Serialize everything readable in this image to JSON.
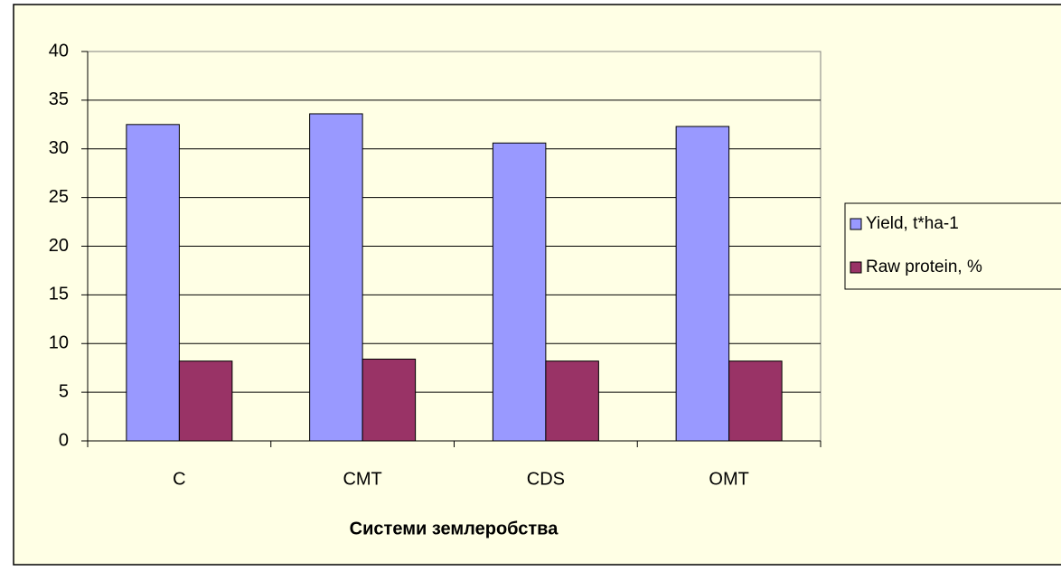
{
  "chart_data": {
    "type": "bar",
    "categories": [
      "C",
      "CMT",
      "CDS",
      "OMT"
    ],
    "series": [
      {
        "name": "Yield, t*ha-1",
        "color": "#9999ff",
        "values": [
          32.5,
          33.6,
          30.6,
          32.3
        ]
      },
      {
        "name": "Raw protein, %",
        "color": "#993366",
        "values": [
          8.2,
          8.4,
          8.2,
          8.2
        ]
      }
    ],
    "x_label": "Системи землеробства",
    "ylim": [
      0,
      40
    ],
    "yticks": [
      0,
      5,
      10,
      15,
      20,
      25,
      30,
      35,
      40
    ],
    "grid": true,
    "legend": "right"
  }
}
